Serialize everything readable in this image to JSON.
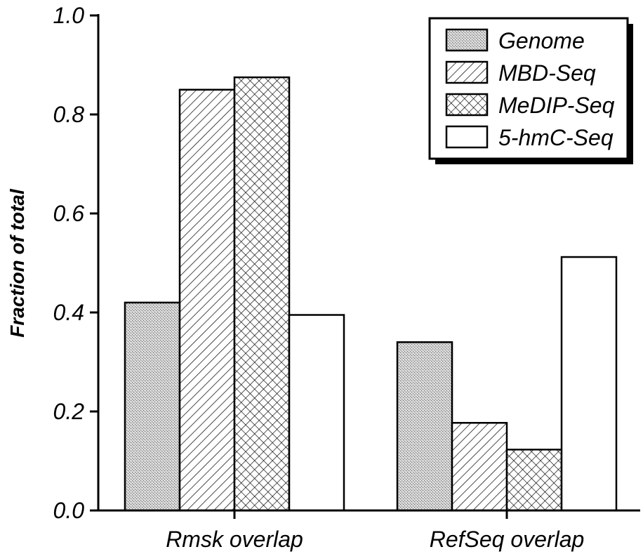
{
  "chart_data": {
    "type": "bar",
    "title": "",
    "xlabel": "",
    "ylabel": "Fraction of total",
    "ylim": [
      0,
      1.0
    ],
    "yticks": [
      "0.0",
      "0.2",
      "0.4",
      "0.6",
      "0.8",
      "1.0"
    ],
    "grid": false,
    "legend_position": "top-right",
    "categories": [
      "Rmsk overlap",
      "RefSeq overlap"
    ],
    "series": [
      {
        "name": "Genome",
        "pattern": "stipple",
        "values": [
          0.42,
          0.34
        ]
      },
      {
        "name": "MBD-Seq",
        "pattern": "diagonal",
        "values": [
          0.85,
          0.177
        ]
      },
      {
        "name": "MeDIP-Seq",
        "pattern": "crosshatch",
        "values": [
          0.875,
          0.123
        ]
      },
      {
        "name": "5-hmC-Seq",
        "pattern": "white",
        "values": [
          0.395,
          0.512
        ]
      }
    ],
    "colors": {
      "stroke": "#000000",
      "fill": "#ffffff"
    }
  }
}
